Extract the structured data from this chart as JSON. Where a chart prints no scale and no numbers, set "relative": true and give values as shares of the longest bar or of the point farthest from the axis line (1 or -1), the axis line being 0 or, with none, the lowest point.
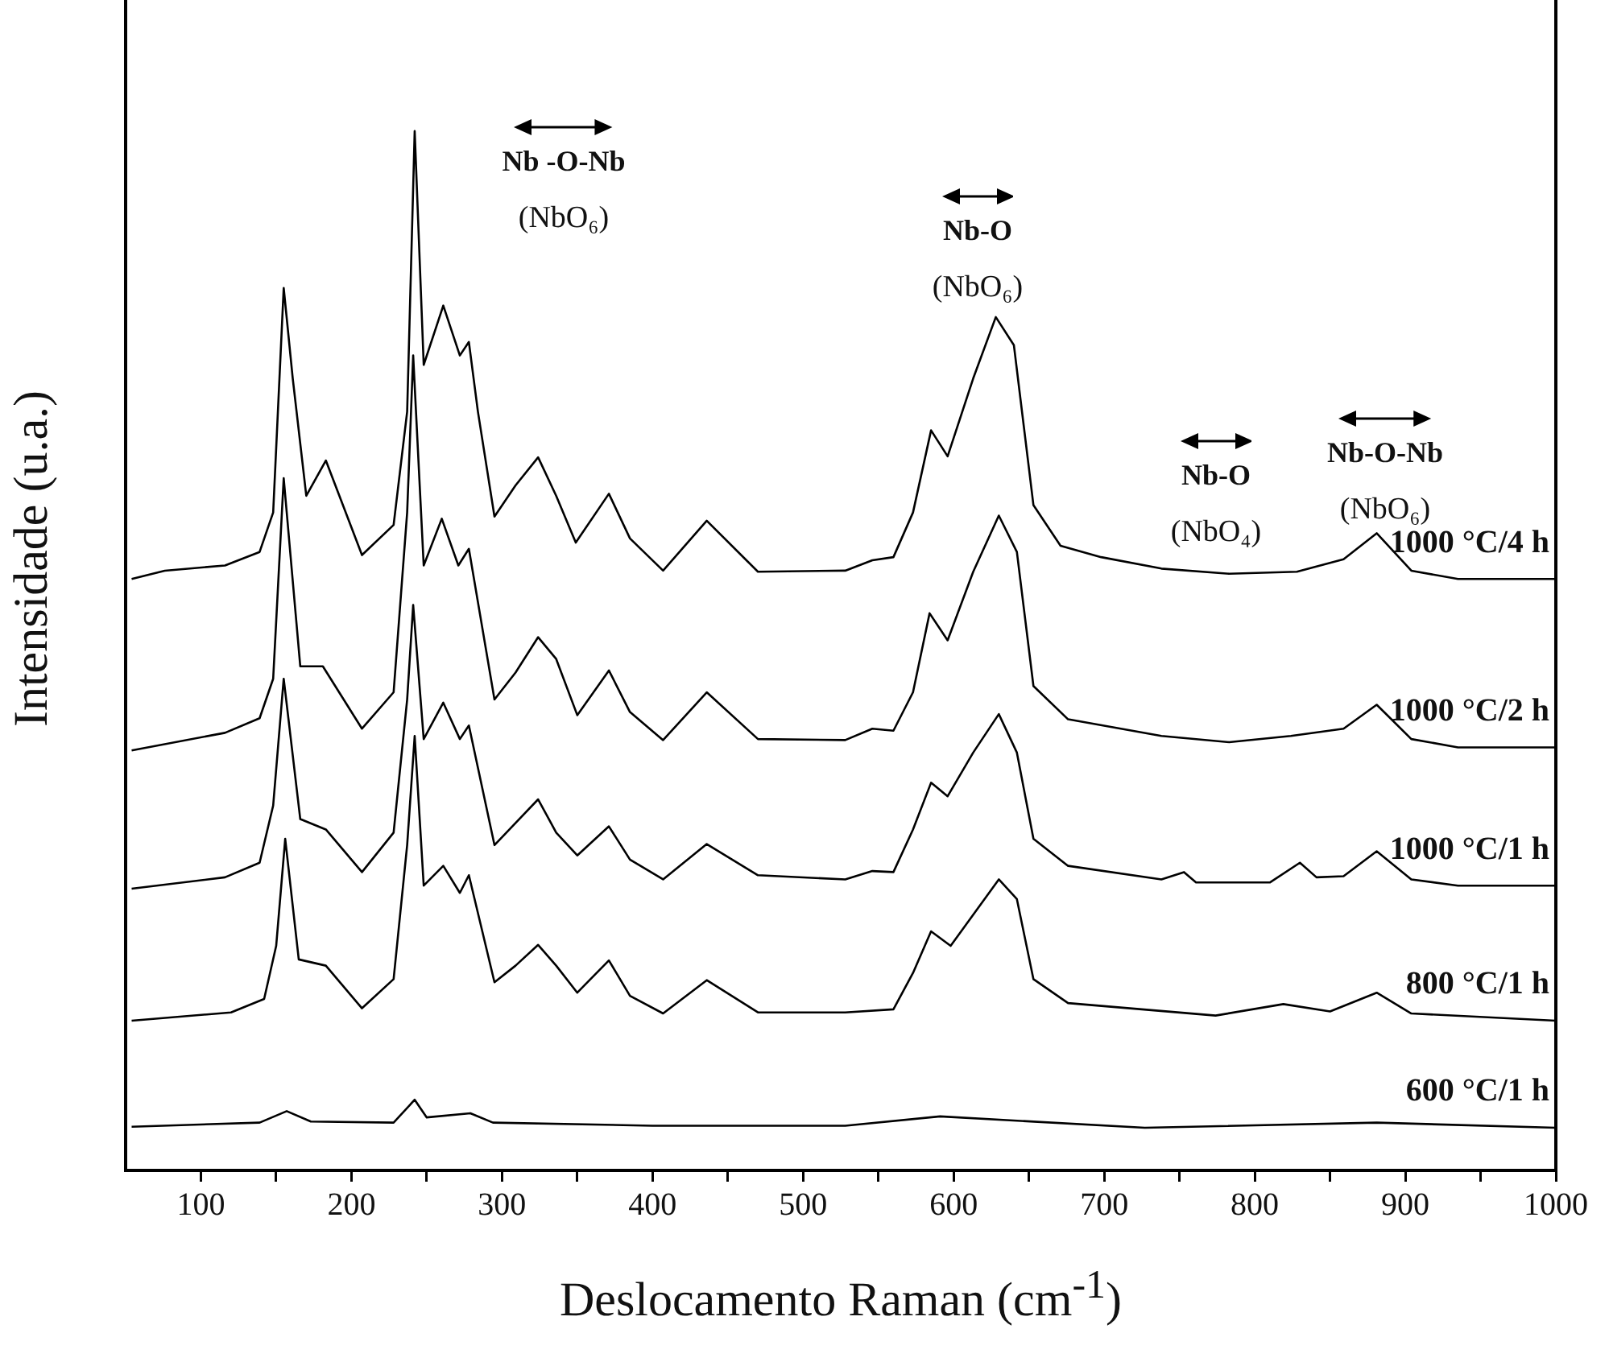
{
  "chart_data": {
    "type": "line",
    "xlabel": "Deslocamento Raman (cm$^{-1}$)",
    "ylabel": "Intensidade (u.a.)",
    "relative": true,
    "xlim": [
      50,
      1000
    ],
    "xticks": [
      100,
      {
        "value": 150,
        "label": null
      },
      200,
      {
        "value": 250,
        "label": null
      },
      300,
      {
        "value": 350,
        "label": null
      },
      400,
      {
        "value": 450,
        "label": null
      },
      500,
      {
        "value": 550,
        "label": null
      },
      600,
      {
        "value": 650,
        "label": null
      },
      700,
      {
        "value": 750,
        "label": null
      },
      800,
      {
        "value": 850,
        "label": null
      },
      900,
      {
        "value": 950,
        "label": null
      },
      1000
    ],
    "grid": false,
    "legend": false,
    "marker": "none",
    "line_style": "solid",
    "annotations": [
      "Nb -O-Nb\n(NbO₆)",
      "Nb-O\n(NbO₆)",
      "Nb-O\n(NbO₄)",
      "Nb-O-Nb\n(NbO₆)"
    ],
    "series": [
      {
        "name": "1000 °C/4 h",
        "color": "#000000",
        "x": [
          54,
          76,
          116,
          139,
          148,
          155,
          161,
          170,
          183,
          207,
          228,
          237,
          242,
          248,
          261,
          272,
          278,
          284,
          295,
          309,
          324,
          336,
          349,
          371,
          385,
          407,
          436,
          470,
          528,
          546,
          560,
          573,
          585,
          596,
          613,
          628,
          640,
          653,
          671,
          698,
          738,
          783,
          828,
          859,
          881,
          904,
          935,
          1000
        ],
        "values": [
          0.569,
          0.577,
          0.582,
          0.595,
          0.633,
          0.849,
          0.762,
          0.649,
          0.683,
          0.592,
          0.621,
          0.73,
          1.0,
          0.775,
          0.832,
          0.784,
          0.797,
          0.73,
          0.629,
          0.659,
          0.686,
          0.649,
          0.604,
          0.651,
          0.608,
          0.577,
          0.625,
          0.576,
          0.577,
          0.587,
          0.59,
          0.633,
          0.712,
          0.687,
          0.762,
          0.821,
          0.794,
          0.64,
          0.601,
          0.59,
          0.579,
          0.574,
          0.576,
          0.588,
          0.613,
          0.577,
          0.569,
          0.569
        ]
      },
      {
        "name": "1000 °C/2 h",
        "color": "#000000",
        "x": [
          54,
          116,
          139,
          148,
          155,
          166,
          181,
          207,
          228,
          237,
          241,
          248,
          260,
          271,
          278,
          295,
          309,
          324,
          336,
          350,
          371,
          385,
          407,
          436,
          470,
          528,
          546,
          560,
          573,
          584,
          596,
          613,
          630,
          642,
          653,
          676,
          738,
          783,
          824,
          859,
          881,
          904,
          935,
          1000
        ],
        "values": [
          0.404,
          0.421,
          0.435,
          0.473,
          0.666,
          0.485,
          0.485,
          0.425,
          0.46,
          0.633,
          0.784,
          0.582,
          0.627,
          0.582,
          0.598,
          0.453,
          0.479,
          0.513,
          0.492,
          0.438,
          0.481,
          0.441,
          0.414,
          0.46,
          0.415,
          0.414,
          0.425,
          0.423,
          0.46,
          0.536,
          0.51,
          0.576,
          0.63,
          0.595,
          0.466,
          0.434,
          0.418,
          0.412,
          0.418,
          0.425,
          0.448,
          0.415,
          0.407,
          0.407
        ]
      },
      {
        "name": "1000 °C/1 h",
        "color": "#000000",
        "x": [
          54,
          116,
          139,
          148,
          155,
          166,
          183,
          207,
          228,
          237,
          241,
          248,
          261,
          272,
          278,
          295,
          324,
          336,
          350,
          371,
          385,
          407,
          436,
          470,
          528,
          546,
          560,
          573,
          585,
          596,
          613,
          630,
          642,
          653,
          676,
          738,
          753,
          761,
          810,
          830,
          841,
          859,
          881,
          904,
          935,
          1000
        ],
        "values": [
          0.271,
          0.282,
          0.296,
          0.351,
          0.473,
          0.338,
          0.328,
          0.287,
          0.325,
          0.453,
          0.544,
          0.415,
          0.45,
          0.415,
          0.428,
          0.313,
          0.357,
          0.325,
          0.303,
          0.331,
          0.299,
          0.28,
          0.314,
          0.284,
          0.28,
          0.288,
          0.287,
          0.328,
          0.373,
          0.36,
          0.402,
          0.439,
          0.402,
          0.319,
          0.293,
          0.28,
          0.287,
          0.277,
          0.277,
          0.296,
          0.282,
          0.283,
          0.307,
          0.28,
          0.274,
          0.274
        ]
      },
      {
        "name": "800 °C/1 h",
        "color": "#000000",
        "x": [
          54,
          120,
          142,
          150,
          156,
          165,
          183,
          207,
          228,
          237,
          242,
          248,
          261,
          272,
          278,
          295,
          309,
          324,
          336,
          350,
          371,
          385,
          407,
          436,
          470,
          528,
          560,
          573,
          585,
          598,
          630,
          642,
          653,
          676,
          774,
          819,
          850,
          881,
          904,
          1000
        ],
        "values": [
          0.144,
          0.152,
          0.165,
          0.216,
          0.319,
          0.203,
          0.197,
          0.156,
          0.184,
          0.313,
          0.418,
          0.274,
          0.293,
          0.267,
          0.284,
          0.181,
          0.197,
          0.217,
          0.197,
          0.171,
          0.202,
          0.168,
          0.151,
          0.183,
          0.152,
          0.152,
          0.155,
          0.19,
          0.23,
          0.216,
          0.28,
          0.261,
          0.184,
          0.161,
          0.149,
          0.16,
          0.153,
          0.171,
          0.151,
          0.144
        ]
      },
      {
        "name": "600 °C/1 h",
        "color": "#000000",
        "x": [
          54,
          139,
          157,
          173,
          228,
          242,
          250,
          279,
          294,
          400,
          528,
          591,
          727,
          881,
          1000
        ],
        "values": [
          0.042,
          0.046,
          0.057,
          0.047,
          0.046,
          0.068,
          0.051,
          0.055,
          0.046,
          0.043,
          0.043,
          0.052,
          0.041,
          0.046,
          0.041
        ]
      }
    ]
  }
}
